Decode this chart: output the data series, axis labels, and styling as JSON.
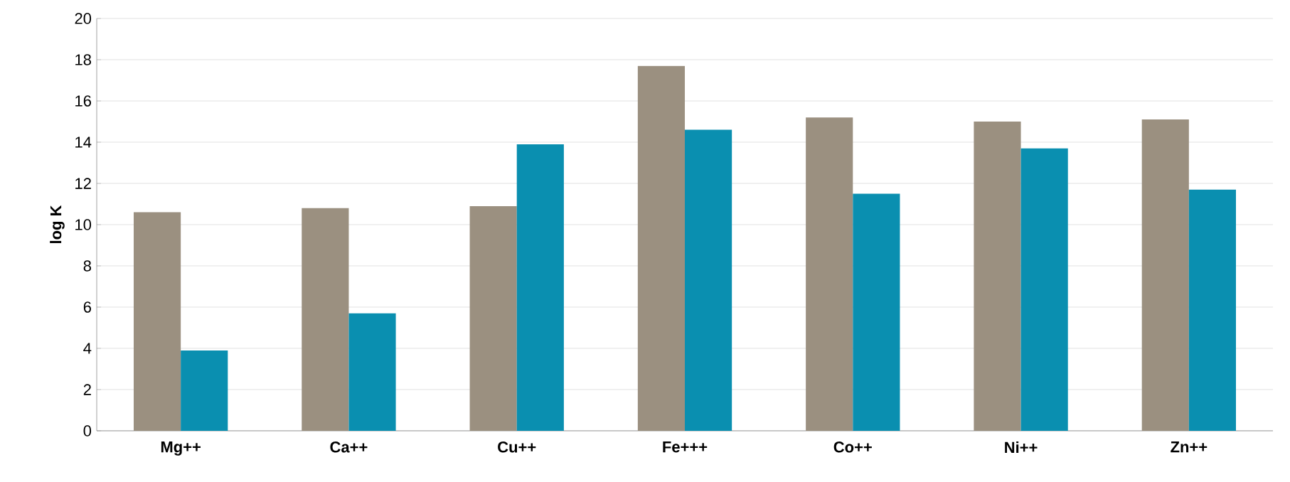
{
  "chart_data": {
    "type": "bar",
    "ylabel": "log K",
    "categories": [
      "Mg++",
      "Ca++",
      "Cu++",
      "Fe+++",
      "Co++",
      "Ni++",
      "Zn++"
    ],
    "series": [
      {
        "color": "#9b9080",
        "values": [
          10.6,
          10.8,
          10.9,
          17.7,
          15.2,
          15.0,
          15.1
        ]
      },
      {
        "color": "#0a8fb0",
        "values": [
          3.9,
          5.7,
          13.9,
          14.6,
          11.5,
          13.7,
          11.7
        ]
      }
    ],
    "ylim": [
      0,
      20
    ],
    "yticks": [
      0,
      2,
      4,
      6,
      8,
      10,
      12,
      14,
      16,
      18,
      20
    ],
    "grid": "y"
  }
}
